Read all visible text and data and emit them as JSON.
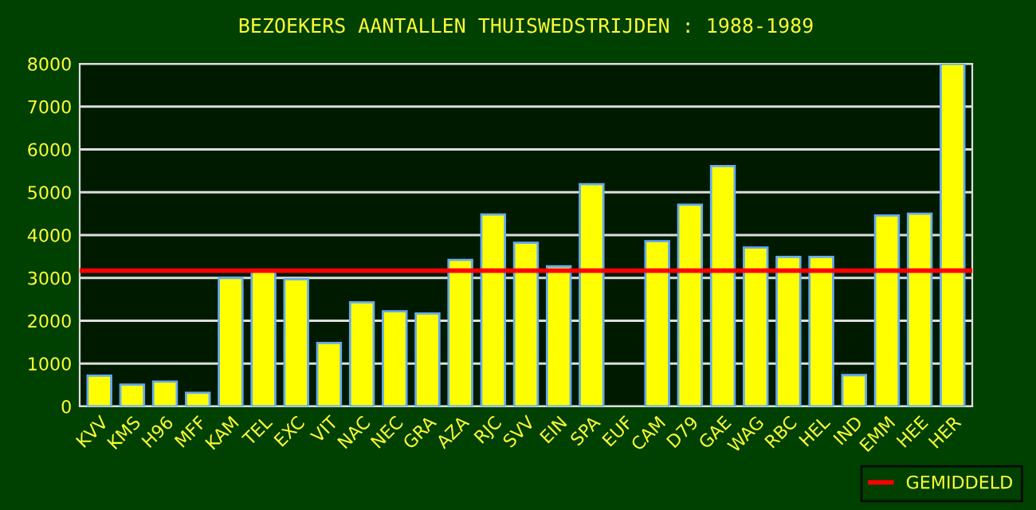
{
  "chart_data": {
    "type": "bar",
    "title": "BEZOEKERS AANTALLEN THUISWEDSTRIJDEN : 1988-1989",
    "categories": [
      "KVV",
      "KMS",
      "H96",
      "MFF",
      "KAM",
      "TEL",
      "EXC",
      "VIT",
      "NAC",
      "NEC",
      "GRA",
      "AZA",
      "RJC",
      "SVV",
      "EIN",
      "SPA",
      "EUF",
      "CAM",
      "D79",
      "GAE",
      "WAG",
      "RBC",
      "HEL",
      "IND",
      "EMM",
      "HEE",
      "HER"
    ],
    "values": [
      720,
      510,
      580,
      320,
      3000,
      3170,
      2970,
      1480,
      2430,
      2220,
      2170,
      3420,
      4480,
      3820,
      3270,
      5190,
      null,
      3860,
      4710,
      5610,
      3710,
      3490,
      3490,
      730,
      4460,
      4500,
      8000
    ],
    "color": "#ffff00",
    "ylim": [
      0,
      8000
    ],
    "yticks": [
      0,
      1000,
      2000,
      3000,
      4000,
      5000,
      6000,
      7000,
      8000
    ],
    "grid": "y",
    "ref_lines": [
      {
        "axis": "y",
        "value": 3170,
        "label": "GEMIDDELD",
        "color": "#ff0000"
      }
    ],
    "legend": "bottom right"
  }
}
